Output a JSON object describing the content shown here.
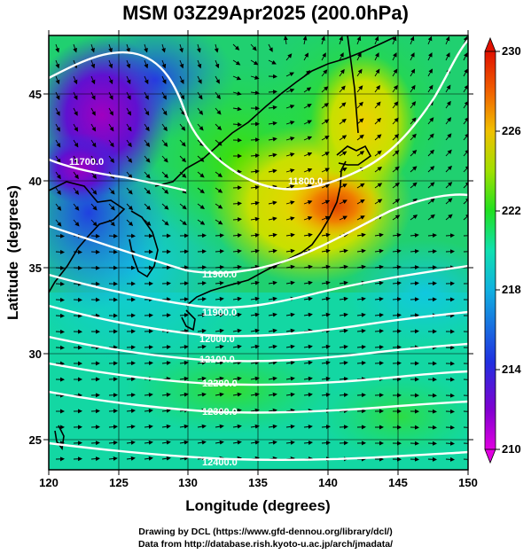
{
  "title": "MSM 03Z29Apr2025 (200.0hPa)",
  "axes": {
    "xlabel": "Longitude (degrees)",
    "ylabel": "Latitude  (degrees)",
    "x_ticks": [
      "120",
      "125",
      "130",
      "135",
      "140",
      "145",
      "150"
    ],
    "y_ticks": [
      "45",
      "40",
      "35",
      "30",
      "25"
    ],
    "xlim": [
      120,
      150
    ],
    "ylim": [
      22.4,
      47.6
    ]
  },
  "colorbar": {
    "labels": [
      "230",
      "226",
      "222",
      "218",
      "214",
      "210"
    ],
    "min": 210,
    "max": 230,
    "colors": [
      "#e000e0",
      "#8000d0",
      "#2030e0",
      "#10b0e0",
      "#10e0b0",
      "#20e020",
      "#a0e000",
      "#f0c000",
      "#f06000",
      "#e01000"
    ]
  },
  "contours": [
    {
      "label": "11700.0"
    },
    {
      "label": "11800.0"
    },
    {
      "label": "11900.0"
    },
    {
      "label": "11900.0"
    },
    {
      "label": "12000.0"
    },
    {
      "label": "12100.0"
    },
    {
      "label": "12200.0"
    },
    {
      "label": "12300.0"
    },
    {
      "label": "12400.0"
    }
  ],
  "credits": {
    "line1": "Drawing by DCL (https://www.gfd-dennou.org/library/dcl/)",
    "line2": "Data from http://database.rish.kyoto-u.ac.jp/arch/jmadata/"
  }
}
